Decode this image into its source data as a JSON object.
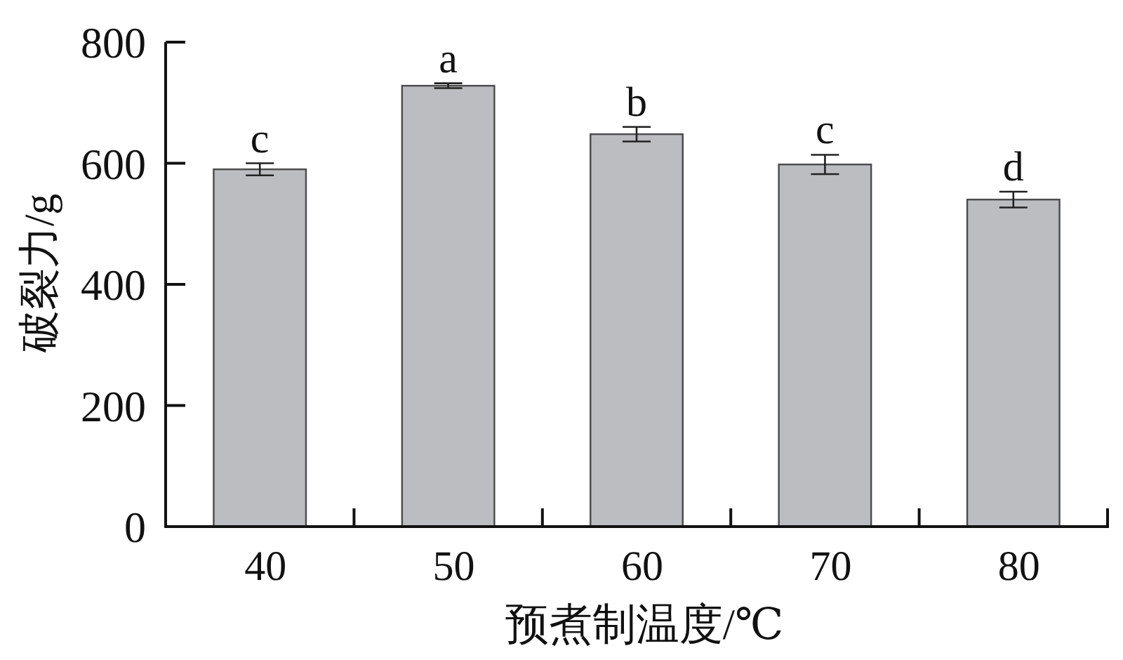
{
  "chart_data": {
    "type": "bar",
    "xlabel": "预煮制温度/℃",
    "ylabel": "破裂力/g",
    "categories": [
      "40",
      "50",
      "60",
      "70",
      "80"
    ],
    "values": [
      590,
      728,
      648,
      598,
      540
    ],
    "errors": [
      10,
      4,
      12,
      16,
      13
    ],
    "color": "#bcbdc0",
    "ylim": [
      0,
      800
    ],
    "yticks": [
      0,
      200,
      400,
      600,
      800
    ],
    "annotations": [
      {
        "text": "c",
        "x": "40",
        "y": 600
      },
      {
        "text": "a",
        "x": "50",
        "y": 732
      },
      {
        "text": "b",
        "x": "60",
        "y": 660
      },
      {
        "text": "c",
        "x": "70",
        "y": 614
      },
      {
        "text": "d",
        "x": "80",
        "y": 553
      }
    ]
  }
}
